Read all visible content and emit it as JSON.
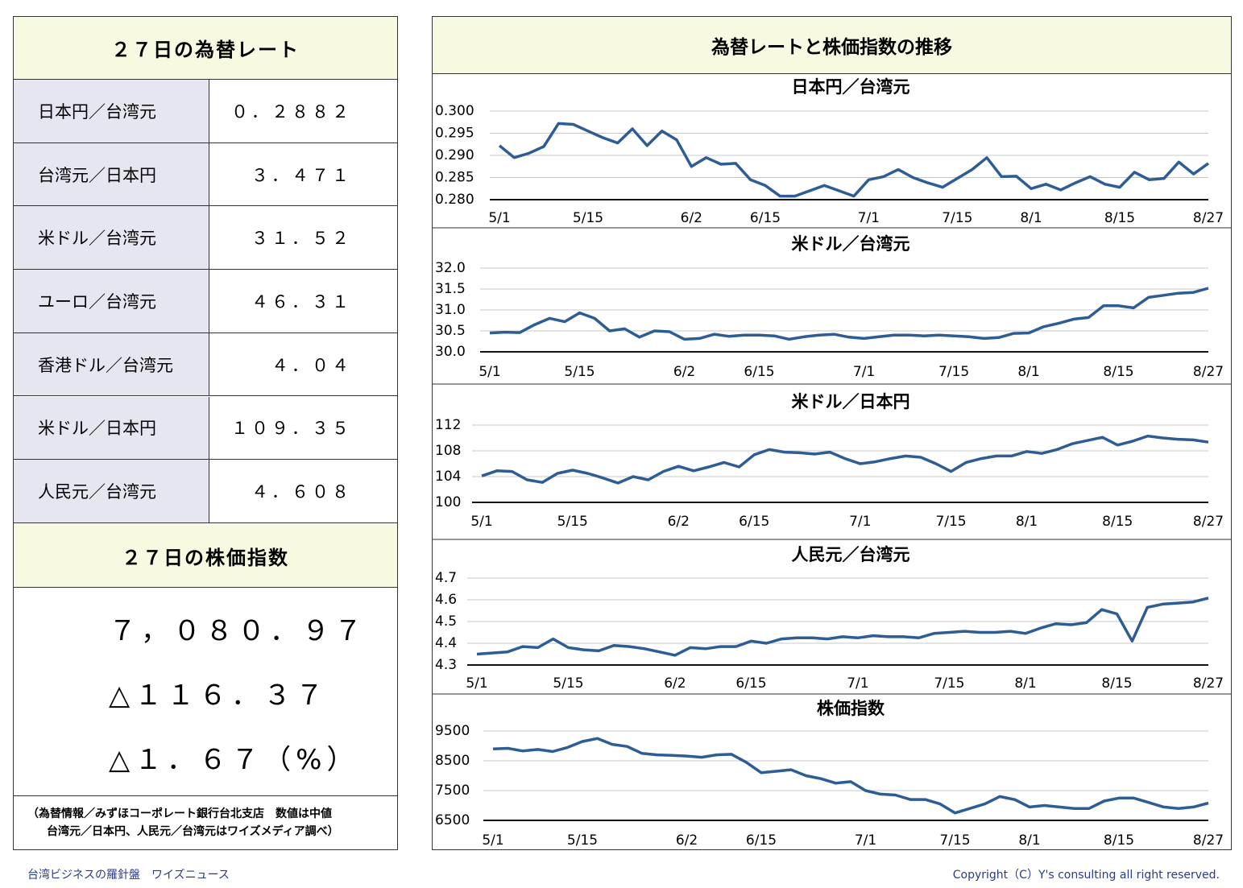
{
  "left": {
    "rates_title": "２７日の為替レート",
    "rates": [
      {
        "label": "日本円／台湾元",
        "value": "０．２８８２"
      },
      {
        "label": "台湾元／日本円",
        "value": "３．４７１"
      },
      {
        "label": "米ドル／台湾元",
        "value": "３１．５２"
      },
      {
        "label": "ユーロ／台湾元",
        "value": "４６．３１"
      },
      {
        "label": "香港ドル／台湾元",
        "value": "４．０４"
      },
      {
        "label": "米ドル／日本円",
        "value": "１０９．３５"
      },
      {
        "label": "人民元／台湾元",
        "value": "４．６０８"
      }
    ],
    "stock_title": "２７日の株価指数",
    "stock": [
      "７，０８０．９７",
      "△１１６．３７",
      "△１．６７（%）"
    ],
    "note": [
      "（為替情報／みずほコーポレート銀行台北支店　数値は中値",
      "台湾元／日本円、人民元／台湾元はワイズメディア調べ）"
    ]
  },
  "header": {
    "title": "為替レートと株価指数の推移"
  },
  "footer": {
    "left": "台湾ビジネスの羅針盤　ワイズニュース",
    "right": "Copyright（C）Y's consulting all right reserved."
  },
  "chart_data": [
    {
      "type": "line",
      "title": "日本円／台湾元",
      "color": "#2e5c95",
      "grid": true,
      "categories": [
        "5/1",
        null,
        null,
        null,
        null,
        null,
        "5/15",
        null,
        null,
        null,
        null,
        null,
        null,
        "6/2",
        null,
        null,
        null,
        null,
        "6/15",
        null,
        null,
        null,
        null,
        null,
        null,
        "7/1",
        null,
        null,
        null,
        null,
        null,
        "7/15",
        null,
        null,
        null,
        null,
        "8/1",
        null,
        null,
        null,
        null,
        null,
        "8/15",
        null,
        null,
        null,
        null,
        null,
        "8/27"
      ],
      "values": [
        0.2922,
        0.2895,
        0.2905,
        0.292,
        0.2972,
        0.297,
        0.2955,
        0.294,
        0.2928,
        0.296,
        0.2922,
        0.2955,
        0.2935,
        0.2875,
        0.2895,
        0.288,
        0.2882,
        0.2845,
        0.2832,
        0.2808,
        0.2808,
        0.282,
        0.2832,
        0.282,
        0.2808,
        0.2845,
        0.2852,
        0.2868,
        0.285,
        0.2838,
        0.2828,
        0.2848,
        0.2868,
        0.2895,
        0.2852,
        0.2853,
        0.2825,
        0.2835,
        0.2822,
        0.2838,
        0.2852,
        0.2835,
        0.2828,
        0.2862,
        0.2845,
        0.2848,
        0.2885,
        0.2858,
        0.2882
      ],
      "ylim": [
        0.28,
        0.3
      ],
      "yticks": [
        {
          "value": 0.28,
          "label": "0.280"
        },
        0.285,
        {
          "value": 0.29,
          "label": "0.290"
        },
        0.295,
        {
          "value": 0.3,
          "label": "0.300"
        }
      ]
    },
    {
      "type": "line",
      "title": "米ドル／台湾元",
      "color": "#2e5c95",
      "grid": true,
      "categories": [
        "5/1",
        null,
        null,
        null,
        null,
        null,
        "5/15",
        null,
        null,
        null,
        null,
        null,
        null,
        "6/2",
        null,
        null,
        null,
        null,
        "6/15",
        null,
        null,
        null,
        null,
        null,
        null,
        "7/1",
        null,
        null,
        null,
        null,
        null,
        "7/15",
        null,
        null,
        null,
        null,
        "8/1",
        null,
        null,
        null,
        null,
        null,
        "8/15",
        null,
        null,
        null,
        null,
        null,
        "8/27"
      ],
      "values": [
        30.45,
        30.47,
        30.46,
        30.65,
        30.8,
        30.72,
        30.93,
        30.8,
        30.5,
        30.55,
        30.35,
        30.5,
        30.48,
        30.3,
        30.32,
        30.42,
        30.37,
        30.4,
        30.4,
        30.38,
        30.3,
        30.36,
        30.4,
        30.42,
        30.35,
        30.32,
        30.36,
        30.4,
        30.4,
        30.38,
        30.4,
        30.38,
        30.36,
        30.32,
        30.34,
        30.44,
        30.45,
        30.6,
        30.68,
        30.78,
        30.82,
        31.1,
        31.1,
        31.05,
        31.3,
        31.35,
        31.4,
        31.42,
        31.52
      ],
      "ylim": [
        30,
        32
      ],
      "yticks": [
        {
          "value": 30,
          "label": "30.0"
        },
        30.5,
        {
          "value": 31,
          "label": "31.0"
        },
        31.5,
        {
          "value": 32,
          "label": "32.0"
        }
      ]
    },
    {
      "type": "line",
      "title": "米ドル／日本円",
      "color": "#2e5c95",
      "grid": true,
      "categories": [
        "5/1",
        null,
        null,
        null,
        null,
        null,
        "5/15",
        null,
        null,
        null,
        null,
        null,
        null,
        "6/2",
        null,
        null,
        null,
        null,
        "6/15",
        null,
        null,
        null,
        null,
        null,
        null,
        "7/1",
        null,
        null,
        null,
        null,
        null,
        "7/15",
        null,
        null,
        null,
        null,
        "8/1",
        null,
        null,
        null,
        null,
        null,
        "8/15",
        null,
        null,
        null,
        null,
        null,
        "8/27"
      ],
      "values": [
        104.1,
        104.9,
        104.8,
        103.5,
        103.1,
        104.5,
        105.0,
        104.5,
        103.8,
        103.0,
        104.0,
        103.5,
        104.8,
        105.6,
        104.9,
        105.5,
        106.2,
        105.5,
        107.4,
        108.2,
        107.8,
        107.7,
        107.5,
        107.8,
        106.8,
        106.0,
        106.3,
        106.8,
        107.2,
        107.0,
        106.0,
        104.8,
        106.2,
        106.8,
        107.2,
        107.2,
        107.9,
        107.6,
        108.2,
        109.1,
        109.6,
        110.1,
        108.9,
        109.5,
        110.3,
        110.0,
        109.8,
        109.7,
        109.35
      ],
      "ylim": [
        100,
        112
      ],
      "yticks": [
        100,
        104,
        108,
        112
      ]
    },
    {
      "type": "line",
      "title": "人民元／台湾元",
      "color": "#2e5c95",
      "grid": true,
      "categories": [
        "5/1",
        null,
        null,
        null,
        null,
        null,
        "5/15",
        null,
        null,
        null,
        null,
        null,
        null,
        "6/2",
        null,
        null,
        null,
        null,
        "6/15",
        null,
        null,
        null,
        null,
        null,
        null,
        "7/1",
        null,
        null,
        null,
        null,
        null,
        "7/15",
        null,
        null,
        null,
        null,
        "8/1",
        null,
        null,
        null,
        null,
        null,
        "8/15",
        null,
        null,
        null,
        null,
        null,
        "8/27"
      ],
      "values": [
        4.35,
        4.355,
        4.36,
        4.385,
        4.38,
        4.42,
        4.38,
        4.37,
        4.365,
        4.39,
        4.385,
        4.375,
        4.36,
        4.345,
        4.38,
        4.375,
        4.385,
        4.385,
        4.41,
        4.4,
        4.42,
        4.425,
        4.425,
        4.42,
        4.43,
        4.425,
        4.435,
        4.43,
        4.43,
        4.425,
        4.445,
        4.45,
        4.455,
        4.45,
        4.45,
        4.455,
        4.445,
        4.47,
        4.49,
        4.485,
        4.495,
        4.555,
        4.535,
        4.41,
        4.565,
        4.58,
        4.585,
        4.59,
        4.608
      ],
      "ylim": [
        4.3,
        4.7
      ],
      "yticks": [
        4.3,
        4.4,
        4.5,
        4.6,
        4.7
      ]
    },
    {
      "type": "line",
      "title": "株価指数",
      "color": "#2e5c95",
      "grid": true,
      "categories": [
        "5/1",
        null,
        null,
        null,
        null,
        null,
        "5/15",
        null,
        null,
        null,
        null,
        null,
        null,
        "6/2",
        null,
        null,
        null,
        null,
        "6/15",
        null,
        null,
        null,
        null,
        null,
        null,
        "7/1",
        null,
        null,
        null,
        null,
        null,
        "7/15",
        null,
        null,
        null,
        null,
        "8/1",
        null,
        null,
        null,
        null,
        null,
        "8/15",
        null,
        null,
        null,
        null,
        null,
        "8/27"
      ],
      "values": [
        8900,
        8920,
        8830,
        8880,
        8810,
        8950,
        9150,
        9250,
        9050,
        8980,
        8750,
        8700,
        8680,
        8660,
        8620,
        8700,
        8720,
        8450,
        8100,
        8150,
        8200,
        8000,
        7900,
        7750,
        7800,
        7500,
        7380,
        7350,
        7200,
        7200,
        7050,
        6750,
        6900,
        7050,
        7300,
        7200,
        6950,
        7000,
        6950,
        6900,
        6900,
        7150,
        7250,
        7250,
        7100,
        6950,
        6900,
        6950,
        7080
      ],
      "ylim": [
        6500,
        9500
      ],
      "yticks": [
        6500,
        7500,
        8500,
        9500
      ]
    }
  ]
}
